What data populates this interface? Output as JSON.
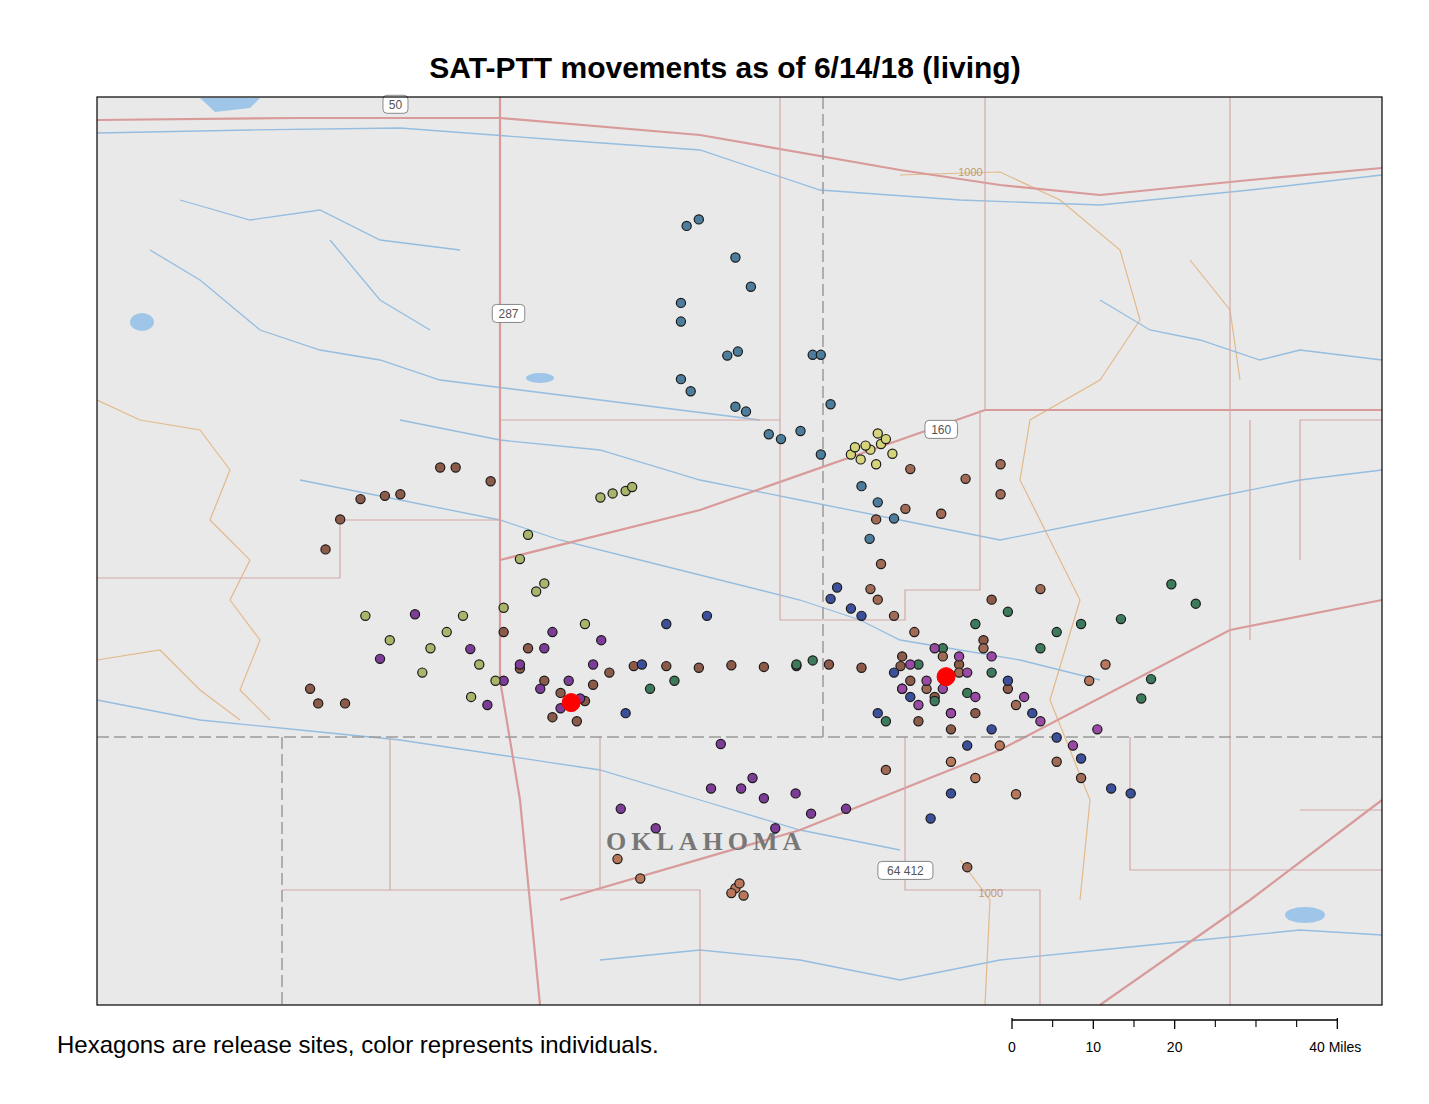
{
  "chart_data": {
    "type": "map",
    "title": "SAT-PTT movements as of 6/14/18 (living)",
    "caption": "Hexagons are release sites, color represents individuals.",
    "xlim": [
      0,
      158
    ],
    "ylim": [
      112,
      0
    ],
    "tick_labels": false,
    "release_sites": {
      "color": "#ff0000",
      "x": [
        58.3,
        104.4
      ],
      "y": [
        74.7,
        71.5
      ]
    },
    "series": [
      {
        "color": "#8c5a48",
        "x": [
          42.2,
          44.1,
          48.4,
          37.3,
          35.4,
          32.4,
          29.9,
          28.1,
          26.2,
          27.2,
          30.5,
          52,
          55,
          57,
          60,
          63,
          66,
          70,
          74,
          78,
          82,
          86,
          90,
          94,
          98.8,
          56,
          59,
          61,
          53,
          50,
          100,
          103,
          106,
          109,
          112,
          101,
          105,
          108,
          99,
          110
        ],
        "y": [
          45.7,
          45.7,
          47.4,
          49,
          49.2,
          49.6,
          52.1,
          55.8,
          73,
          74.8,
          74.8,
          70.5,
          72,
          73.5,
          74.5,
          71,
          70.2,
          70.2,
          70.4,
          70.1,
          70.3,
          70.2,
          70,
          70.4,
          70.2,
          76.5,
          77,
          72.5,
          68,
          66,
          72,
          74,
          70,
          67,
          73,
          77,
          78,
          76,
          69,
          62
        ]
      },
      {
        "color": "#7d3c98",
        "x": [
          39.1,
          34.8,
          45.9,
          54.5,
          57,
          59.4,
          52,
          55,
          58,
          61,
          50,
          48,
          56,
          62,
          76.7,
          75.5,
          79.2,
          85.9,
          87.8,
          92.1,
          64.4,
          68.7,
          83.4,
          80.6,
          82
        ],
        "y": [
          63.8,
          69.3,
          68.1,
          73,
          75.4,
          74.2,
          70,
          68,
          72,
          70,
          72,
          75,
          66,
          67,
          79.8,
          85.3,
          85.3,
          85.9,
          88.4,
          87.8,
          87.8,
          90.2,
          90.2,
          84,
          86.5
        ]
      },
      {
        "color": "#a9b56b",
        "x": [
          61.9,
          63.4,
          65,
          65.8,
          53,
          52,
          55,
          45,
          43,
          41,
          47,
          49,
          46,
          40,
          36,
          33,
          50,
          54,
          60,
          58
        ],
        "y": [
          49.4,
          48.9,
          48.6,
          48.1,
          54,
          57,
          60,
          64,
          66,
          68,
          70,
          72,
          74,
          71,
          67,
          64,
          63,
          61,
          65,
          75
        ]
      },
      {
        "color": "#4c7d9c",
        "x": [
          74,
          72.5,
          78.5,
          80.4,
          71.8,
          71.8,
          78.8,
          77.5,
          88,
          89,
          71.8,
          73,
          78.5,
          79.8,
          82.6,
          84.1,
          86.5,
          90.2,
          89,
          94,
          96,
          98,
          95
        ],
        "y": [
          15.1,
          15.9,
          19.8,
          23.4,
          25.4,
          27.7,
          31.4,
          31.9,
          31.8,
          31.8,
          34.8,
          36.3,
          38.2,
          38.8,
          41.6,
          42.2,
          41.2,
          37.9,
          44.1,
          48,
          50,
          52,
          54.5
        ]
      },
      {
        "color": "#d6d47a",
        "x": [
          92.7,
          93.9,
          95.1,
          96.4,
          97,
          95.8,
          94.5,
          97.8,
          93.2,
          96
        ],
        "y": [
          44.1,
          44.7,
          43.5,
          42.8,
          42.2,
          45.3,
          43,
          44,
          43.2,
          41.5
        ]
      },
      {
        "color": "#3b4f9a",
        "x": [
          90.2,
          92.7,
          91,
          94,
          121,
          124.7,
          127.1,
          105,
          102.5,
          118,
          115,
          110,
          100,
          98,
          96,
          112,
          107,
          75,
          70,
          67,
          65
        ],
        "y": [
          61.9,
          63.1,
          60.5,
          64,
          81.6,
          85.3,
          85.9,
          85.9,
          89,
          79,
          76,
          78,
          74,
          71,
          76,
          72,
          80,
          64,
          65,
          70,
          76
        ]
      },
      {
        "color": "#3d7a5c",
        "x": [
          116,
          121,
          125.9,
          129.6,
          132.1,
          135.1,
          128.4,
          118,
          112,
          108,
          104,
          101,
          99,
          105,
          107,
          110,
          103,
          97,
          68,
          71,
          86,
          88
        ],
        "y": [
          68,
          65,
          64.4,
          71.8,
          60.1,
          62.5,
          74.2,
          66,
          63.5,
          65,
          68,
          70,
          73,
          76,
          73.5,
          71,
          74.5,
          77,
          73,
          72,
          70,
          69.5
        ]
      },
      {
        "color": "#a06a55",
        "x": [
          95.8,
          96.4,
          95.1,
          100,
          99.4,
          111.1,
          111.1,
          106.8,
          103.8,
          116,
          100.5,
          98,
          104,
          106,
          109,
          102,
          113,
          96,
          118,
          121,
          97,
          107
        ],
        "y": [
          52.1,
          57.6,
          60.7,
          45.9,
          50.8,
          45.3,
          49,
          47.1,
          51.4,
          60.7,
          66,
          64,
          69,
          71,
          68,
          73,
          75,
          62,
          82,
          84,
          83,
          95
        ]
      },
      {
        "color": "#9a4aa5",
        "x": [
          100,
          102,
          104,
          106,
          108,
          101,
          103,
          105,
          107,
          99,
          110,
          114,
          116,
          120,
          123
        ],
        "y": [
          70,
          72,
          73,
          69,
          74,
          75,
          68,
          76,
          71,
          73,
          69,
          74,
          77,
          80,
          78
        ]
      },
      {
        "color": "#b8775a",
        "x": [
          78.5,
          78,
          79,
          79.5,
          66.8,
          64,
          105,
          108,
          111,
          113,
          122,
          124
        ],
        "y": [
          97.6,
          98.2,
          97,
          98.5,
          96.4,
          94,
          82,
          84,
          80,
          86,
          72,
          70
        ]
      }
    ],
    "labels": [
      {
        "text": "OKLAHOMA",
        "x": 74.9,
        "y": 91.7,
        "marker": "place"
      },
      {
        "text": "50",
        "x": 36.7,
        "y": 0.9,
        "marker": "shield"
      },
      {
        "text": "287",
        "x": 50.6,
        "y": 26.7,
        "marker": "shield"
      },
      {
        "text": "160",
        "x": 103.8,
        "y": 41,
        "marker": "shield"
      },
      {
        "text": "64 412",
        "x": 99.4,
        "y": 95.4,
        "marker": "shield"
      },
      {
        "text": "1000",
        "x": 107.4,
        "y": 9.2,
        "marker": "contour"
      },
      {
        "text": "1000",
        "x": 109.9,
        "y": 98.2,
        "marker": "contour"
      }
    ],
    "scale_bar": {
      "ticks": [
        0,
        10,
        20,
        {
          "value": 40,
          "label": "40 Miles"
        }
      ],
      "minor_ticks": [
        5,
        15,
        25,
        30,
        35
      ]
    }
  }
}
